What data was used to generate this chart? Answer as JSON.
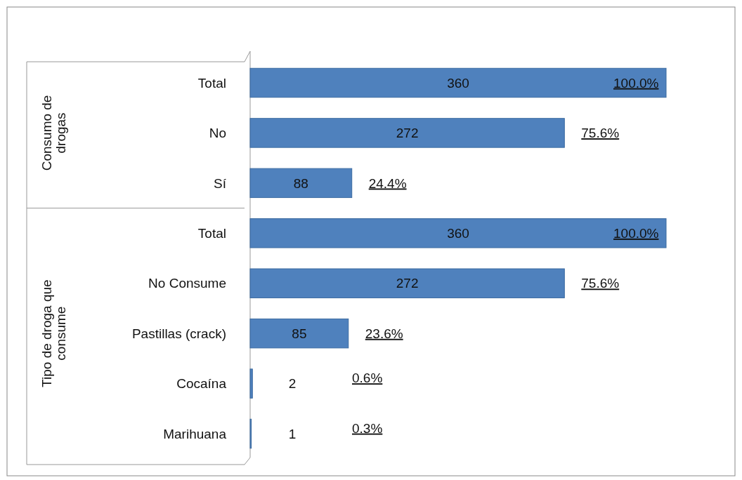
{
  "chart_data": {
    "type": "bar",
    "orientation": "horizontal",
    "categories": [
      "Total",
      "No",
      "Sí",
      "Total",
      "No Consume",
      "Pastillas (crack)",
      "Cocaína",
      "Marihuana"
    ],
    "values": [
      360,
      272,
      88,
      360,
      272,
      85,
      2,
      1
    ],
    "color": "#4f81bd",
    "data_labels": true,
    "annotations": [
      "100.0%",
      "75.6%",
      "24.4%",
      "100.0%",
      "75.6%",
      "23.6%",
      "0.6%",
      "0.3%",
      "Consumo de drogas",
      "Tipo de droga que consume"
    ]
  }
}
